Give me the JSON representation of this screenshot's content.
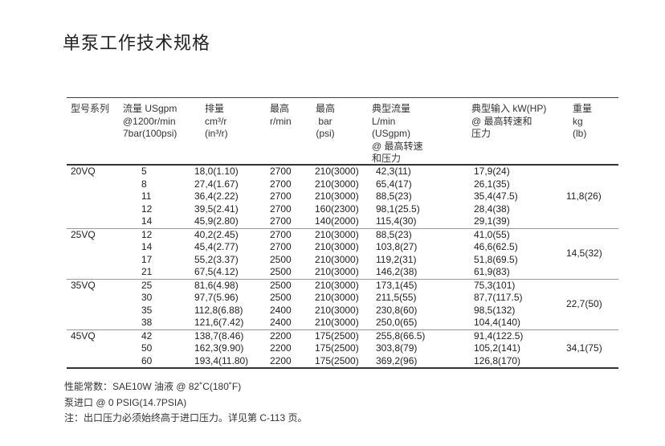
{
  "title": "单泵工作技术规格",
  "headers": [
    [
      "型号系列"
    ],
    [
      "流量 USgpm",
      "@1200r/min",
      "7bar(100psi)"
    ],
    [
      "排量",
      "cm³/r",
      "(in³/r)"
    ],
    [
      "最高",
      "r/min"
    ],
    [
      "最高",
      "bar",
      "(psi)"
    ],
    [
      "典型流量",
      "L/min",
      "(USgpm)",
      "@ 最高转速",
      "和压力"
    ],
    [
      "典型输入 kW(HP)",
      "@ 最高转速和",
      "压力"
    ],
    [
      "重量",
      "kg",
      "(lb)"
    ]
  ],
  "groups": [
    {
      "model": "20VQ",
      "weight": "11,8(26)",
      "rows": [
        [
          "5",
          "18,0(1.10)",
          "2700",
          "210(3000)",
          "42,3(11)",
          "17,9(24)"
        ],
        [
          "8",
          "27,4(1.67)",
          "2700",
          "210(3000)",
          "65,4(17)",
          "26,1(35)"
        ],
        [
          "11",
          "36,4(2.22)",
          "2700",
          "210(3000)",
          "88,5(23)",
          "35,4(47.5)"
        ],
        [
          "12",
          "39,5(2.41)",
          "2700",
          "160(2300)",
          "98,1(25.5)",
          "28,4(38)"
        ],
        [
          "14",
          "45,9(2.80)",
          "2700",
          "140(2000)",
          "115,4(30)",
          "29,1(39)"
        ]
      ]
    },
    {
      "model": "25VQ",
      "weight": "14,5(32)",
      "rows": [
        [
          "12",
          "40,2(2.45)",
          "2700",
          "210(3000)",
          "88,5(23)",
          "41,0(55)"
        ],
        [
          "14",
          "45,4(2.77)",
          "2700",
          "210(3000)",
          "103,8(27)",
          "46,6(62.5)"
        ],
        [
          "17",
          "55,2(3.37)",
          "2500",
          "210(3000)",
          "119,2(31)",
          "51,8(69.5)"
        ],
        [
          "21",
          "67,5(4.12)",
          "2500",
          "210(3000)",
          "146,2(38)",
          "61,9(83)"
        ]
      ]
    },
    {
      "model": "35VQ",
      "weight": "22,7(50)",
      "rows": [
        [
          "25",
          "81,6(4.98)",
          "2500",
          "210(3000)",
          "173,1(45)",
          "75,3(101)"
        ],
        [
          "30",
          "97,7(5.96)",
          "2500",
          "210(3000)",
          "211,5(55)",
          "87,7(117.5)"
        ],
        [
          "35",
          "112,8(6.88)",
          "2400",
          "210(3000)",
          "230,8(60)",
          "98,5(132)"
        ],
        [
          "38",
          "121,6(7.42)",
          "2400",
          "210(3000)",
          "250,0(65)",
          "104,4(140)"
        ]
      ]
    },
    {
      "model": "45VQ",
      "weight": "34,1(75)",
      "rows": [
        [
          "42",
          "138,7(8.46)",
          "2200",
          "175(2500)",
          "255,8(66.5)",
          "91,4(122.5)"
        ],
        [
          "50",
          "162,3(9.90)",
          "2200",
          "175(2500)",
          "303,8(79)",
          "105,2(141)"
        ],
        [
          "60",
          "193,4(11.80)",
          "2200",
          "175(2500)",
          "369,2(96)",
          "126,8(170)"
        ]
      ]
    }
  ],
  "notes": [
    "性能常数：SAE10W 油液 @ 82˚C(180˚F)",
    "泵进口 @ 0 PSIG(14.7PSIA)",
    "注：出口压力必须始终高于进口压力。详见第 C-113 页。"
  ]
}
